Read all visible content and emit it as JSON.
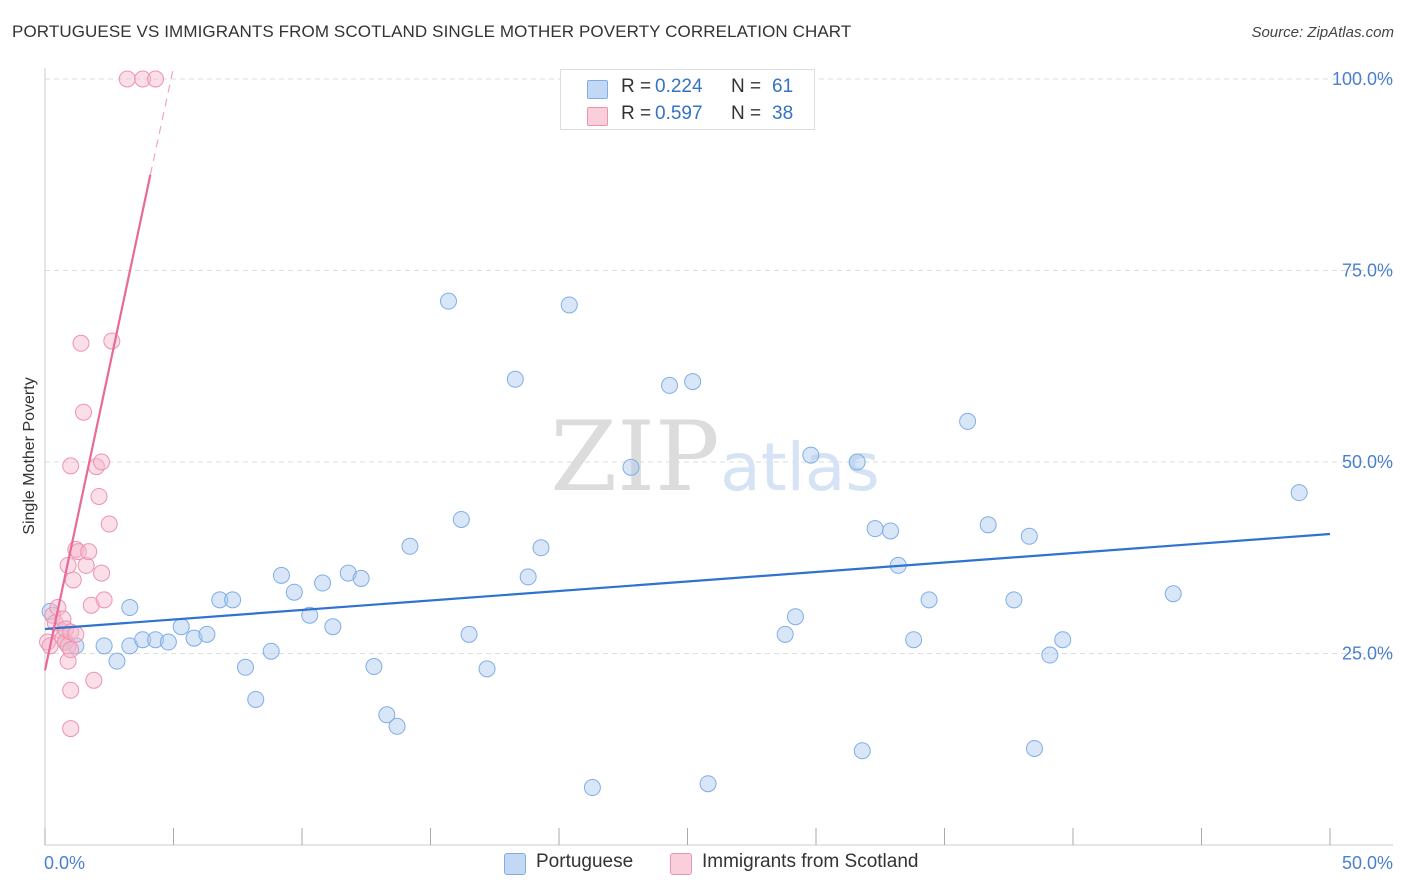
{
  "header": {
    "title": "PORTUGUESE VS IMMIGRANTS FROM SCOTLAND SINGLE MOTHER POVERTY CORRELATION CHART",
    "source": "Source: ZipAtlas.com"
  },
  "watermark": {
    "left": "ZIP",
    "right": "atlas"
  },
  "legend_top": {
    "rows": [
      {
        "r_label": "R = ",
        "r_value": "0.224",
        "n_label": "N = ",
        "n_value": "61",
        "color": "#a8c8f0"
      },
      {
        "r_label": "R = ",
        "r_value": "0.597",
        "n_label": "N = ",
        "n_value": "38",
        "color": "#f5b8cb"
      }
    ]
  },
  "legend_bottom": {
    "items": [
      {
        "label": "Portuguese",
        "color": "#a8c8f0"
      },
      {
        "label": "Immigrants from Scotland",
        "color": "#f5b8cb"
      }
    ]
  },
  "chart_data": {
    "type": "scatter",
    "title": "PORTUGUESE VS IMMIGRANTS FROM SCOTLAND SINGLE MOTHER POVERTY CORRELATION CHART",
    "xlabel": "",
    "ylabel": "Single Mother Poverty",
    "xlim": [
      0,
      50
    ],
    "ylim": [
      0,
      100
    ],
    "x_tick_labels": [
      "0.0%",
      "50.0%"
    ],
    "y_tick_labels": [
      "25.0%",
      "50.0%",
      "75.0%",
      "100.0%"
    ],
    "y_ticks": [
      25,
      50,
      75,
      100
    ],
    "grid": true,
    "legend_position": "top-center",
    "series": [
      {
        "name": "Portuguese",
        "color": "#a8c8f0",
        "stroke": "#7faee6",
        "trend_color": "#2f72d0",
        "trend": {
          "x0": 0,
          "y0": 28.2,
          "x1": 50,
          "y1": 40.6
        },
        "points": [
          [
            0.2,
            30.5
          ],
          [
            0.8,
            26.5
          ],
          [
            1.2,
            26
          ],
          [
            2.3,
            26
          ],
          [
            2.8,
            24
          ],
          [
            3.3,
            31
          ],
          [
            3.3,
            26
          ],
          [
            3.8,
            26.8
          ],
          [
            4.3,
            26.8
          ],
          [
            4.8,
            26.5
          ],
          [
            5.3,
            28.5
          ],
          [
            5.8,
            27
          ],
          [
            6.3,
            27.5
          ],
          [
            6.8,
            32
          ],
          [
            7.3,
            32
          ],
          [
            7.8,
            23.2
          ],
          [
            8.2,
            19
          ],
          [
            8.8,
            25.3
          ],
          [
            9.2,
            35.2
          ],
          [
            9.7,
            33
          ],
          [
            10.3,
            30
          ],
          [
            10.8,
            34.2
          ],
          [
            11.2,
            28.5
          ],
          [
            11.8,
            35.5
          ],
          [
            12.3,
            34.8
          ],
          [
            12.8,
            23.3
          ],
          [
            13.3,
            17
          ],
          [
            13.7,
            15.5
          ],
          [
            14.2,
            39
          ],
          [
            15.7,
            71
          ],
          [
            16.2,
            42.5
          ],
          [
            16.5,
            27.5
          ],
          [
            17.2,
            23
          ],
          [
            18.3,
            60.8
          ],
          [
            18.8,
            35
          ],
          [
            19.3,
            38.8
          ],
          [
            20.4,
            70.5
          ],
          [
            21.3,
            7.5
          ],
          [
            22.8,
            49.3
          ],
          [
            24.3,
            60
          ],
          [
            25.2,
            60.5
          ],
          [
            25.8,
            8
          ],
          [
            28.8,
            27.5
          ],
          [
            29.2,
            29.8
          ],
          [
            29.8,
            50.9
          ],
          [
            31.6,
            50
          ],
          [
            31.8,
            12.3
          ],
          [
            32.3,
            41.3
          ],
          [
            32.9,
            41
          ],
          [
            33.2,
            36.5
          ],
          [
            33.8,
            26.8
          ],
          [
            34.4,
            32
          ],
          [
            35.9,
            55.3
          ],
          [
            36.7,
            41.8
          ],
          [
            37.7,
            32
          ],
          [
            38.3,
            40.3
          ],
          [
            38.5,
            12.6
          ],
          [
            39.1,
            24.8
          ],
          [
            39.6,
            26.8
          ],
          [
            43.9,
            32.8
          ],
          [
            48.8,
            46
          ]
        ]
      },
      {
        "name": "Immigrants from Scotland",
        "color": "#f5b8cb",
        "stroke": "#ee93ae",
        "trend_color": "#e8699a",
        "trend": {
          "x0": 0,
          "y0": 22.8,
          "x1": 4.1,
          "y1": 87.5
        },
        "trend_dashed": {
          "x0": 4.1,
          "y0": 87.5,
          "x1": 5.0,
          "y1": 101.5
        },
        "points": [
          [
            0.1,
            26.5
          ],
          [
            0.2,
            26
          ],
          [
            0.3,
            30
          ],
          [
            0.4,
            29
          ],
          [
            0.5,
            31
          ],
          [
            0.6,
            28
          ],
          [
            0.7,
            27
          ],
          [
            0.8,
            26.5
          ],
          [
            0.9,
            26
          ],
          [
            0.7,
            29.5
          ],
          [
            0.8,
            28.2
          ],
          [
            1.0,
            27.8
          ],
          [
            0.9,
            24
          ],
          [
            1.0,
            25.5
          ],
          [
            0.9,
            36.5
          ],
          [
            1.0,
            49.5
          ],
          [
            1.1,
            34.6
          ],
          [
            1.2,
            38.6
          ],
          [
            1.3,
            38.3
          ],
          [
            1.2,
            27.5
          ],
          [
            1.4,
            65.5
          ],
          [
            1.5,
            56.5
          ],
          [
            1.6,
            36.5
          ],
          [
            1.7,
            38.3
          ],
          [
            1.8,
            31.3
          ],
          [
            1.9,
            21.5
          ],
          [
            2.0,
            49.4
          ],
          [
            2.1,
            45.5
          ],
          [
            2.2,
            50
          ],
          [
            2.2,
            35.5
          ],
          [
            2.3,
            32
          ],
          [
            2.5,
            41.9
          ],
          [
            2.6,
            65.8
          ],
          [
            3.2,
            100
          ],
          [
            3.8,
            100
          ],
          [
            4.3,
            100
          ],
          [
            1.0,
            20.2
          ],
          [
            1.0,
            15.2
          ]
        ]
      }
    ]
  }
}
